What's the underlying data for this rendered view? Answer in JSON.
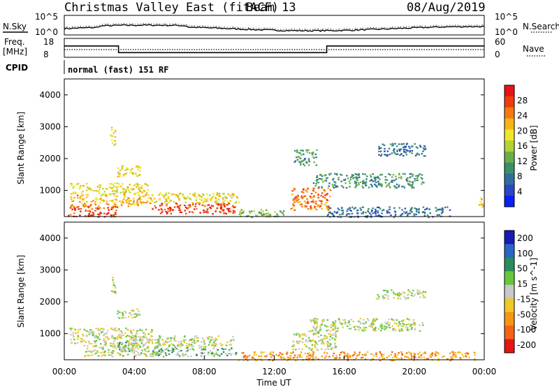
{
  "header": {
    "title": "Christmas Valley East (fitACF)",
    "beam": "Beam 13",
    "date": "08/Aug/2019"
  },
  "side": {
    "nsky": "N.Sky",
    "nsearch": "N.Search",
    "freq_line1": "Freq.",
    "freq_line2": "[MHz]",
    "nave": "Nave",
    "cpid": "CPID",
    "cpid_value": "normal (fast) 151 RF",
    "noise_ticks": [
      "10^5",
      "10^0"
    ],
    "freq_ticks": [
      "18",
      "8"
    ],
    "nave_ticks": [
      "60",
      "0"
    ]
  },
  "chart_data": [
    {
      "type": "heatmap",
      "name": "power",
      "ylabel": "Slant Range [km]",
      "ylim": [
        180,
        4500
      ],
      "yticks": [
        1000,
        2000,
        3000,
        4000
      ],
      "x": [
        "00:00",
        "04:00",
        "08:00",
        "12:00",
        "16:00",
        "20:00",
        "00:00"
      ],
      "xlim_hours": [
        0,
        24
      ],
      "colorbar": {
        "label": "Power [dB]",
        "ticks": [
          "4",
          "8",
          "12",
          "16",
          "20",
          "24",
          "28"
        ],
        "colors": [
          "#0a1eff",
          "#2a46c8",
          "#2c6f9c",
          "#3c8f6c",
          "#6ab04a",
          "#b4d232",
          "#f0e628",
          "#f5b414",
          "#f57814",
          "#f03c0a",
          "#e61414"
        ]
      },
      "regions": [
        {
          "t": [
            0.2,
            3.0
          ],
          "r": [
            180,
            520
          ],
          "level": 9
        },
        {
          "t": [
            0.3,
            5.0
          ],
          "r": [
            520,
            900
          ],
          "level": 7
        },
        {
          "t": [
            0.3,
            4.8
          ],
          "r": [
            900,
            1250
          ],
          "level": 6
        },
        {
          "t": [
            2.6,
            2.9
          ],
          "r": [
            2400,
            3000
          ],
          "level": 6
        },
        {
          "t": [
            3.0,
            4.3
          ],
          "r": [
            1450,
            1800
          ],
          "level": 6
        },
        {
          "t": [
            5.0,
            9.8
          ],
          "r": [
            280,
            620
          ],
          "level": 9
        },
        {
          "t": [
            5.0,
            10.0
          ],
          "r": [
            620,
            950
          ],
          "level": 6
        },
        {
          "t": [
            9.9,
            12.5
          ],
          "r": [
            180,
            420
          ],
          "level": 4
        },
        {
          "t": [
            12.9,
            15.2
          ],
          "r": [
            400,
            1100
          ],
          "level": 8
        },
        {
          "t": [
            13.1,
            14.4
          ],
          "r": [
            1800,
            2300
          ],
          "level": 3
        },
        {
          "t": [
            14.2,
            20.5
          ],
          "r": [
            1100,
            1550
          ],
          "level": 3
        },
        {
          "t": [
            15.0,
            22.0
          ],
          "r": [
            180,
            500
          ],
          "level": 2
        },
        {
          "t": [
            17.8,
            20.6
          ],
          "r": [
            2100,
            2500
          ],
          "level": 2
        },
        {
          "t": [
            23.6,
            23.9
          ],
          "r": [
            450,
            800
          ],
          "level": 7
        }
      ]
    },
    {
      "type": "heatmap",
      "name": "velocity",
      "ylabel": "Slant Range [km]",
      "ylim": [
        180,
        4500
      ],
      "yticks": [
        1000,
        2000,
        3000,
        4000
      ],
      "x": [
        "00:00",
        "04:00",
        "08:00",
        "12:00",
        "16:00",
        "20:00",
        "00:00"
      ],
      "xlabel": "Time UT",
      "colorbar": {
        "label": "Velocity [m s^-1]",
        "ticks": [
          "200",
          "100",
          "50",
          "15",
          "-15",
          "-50",
          "-100",
          "-200"
        ],
        "colors": [
          "#1a1ab4",
          "#2866c8",
          "#2a8c5a",
          "#64c83c",
          "#c8c8c8",
          "#f0c828",
          "#f59614",
          "#f56414",
          "#e61414"
        ]
      },
      "regions": [
        {
          "t": [
            0.3,
            5.0
          ],
          "r": [
            700,
            1200
          ],
          "level": 4
        },
        {
          "t": [
            1.0,
            5.5
          ],
          "r": [
            300,
            700
          ],
          "level": 4
        },
        {
          "t": [
            3.0,
            4.2
          ],
          "r": [
            450,
            750
          ],
          "level": 3
        },
        {
          "t": [
            5.0,
            9.8
          ],
          "r": [
            300,
            600
          ],
          "level": 3
        },
        {
          "t": [
            3.5,
            9.8
          ],
          "r": [
            600,
            950
          ],
          "level": 4
        },
        {
          "t": [
            9.9,
            23.5
          ],
          "r": [
            180,
            450
          ],
          "level": 6
        },
        {
          "t": [
            13.0,
            15.5
          ],
          "r": [
            500,
            1100
          ],
          "level": 4
        },
        {
          "t": [
            14.0,
            20.5
          ],
          "r": [
            1100,
            1500
          ],
          "level": 4
        },
        {
          "t": [
            17.8,
            20.6
          ],
          "r": [
            2100,
            2400
          ],
          "level": 4
        },
        {
          "t": [
            3.0,
            4.3
          ],
          "r": [
            1500,
            1800
          ],
          "level": 4
        },
        {
          "t": [
            2.6,
            2.9
          ],
          "r": [
            2300,
            2800
          ],
          "level": 4
        }
      ]
    }
  ],
  "timeline": {
    "xlabel": "Time UT",
    "ticks": [
      "00:00",
      "04:00",
      "08:00",
      "12:00",
      "16:00",
      "20:00",
      "00:00"
    ]
  },
  "freq_steps": [
    {
      "t": [
        0,
        3.1
      ],
      "value": 14
    },
    {
      "t": [
        3.1,
        15.0
      ],
      "value": 10.5
    },
    {
      "t": [
        15.0,
        24
      ],
      "value": 14
    }
  ]
}
